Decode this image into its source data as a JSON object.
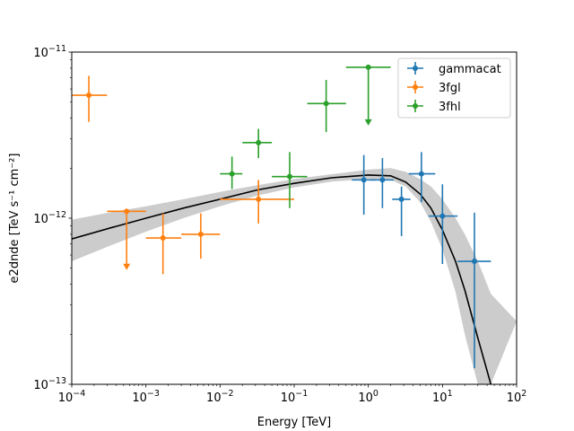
{
  "chart_data": {
    "type": "scatter",
    "title": "",
    "xlabel": "Energy [TeV]",
    "ylabel": "e2dnde [TeV s⁻¹ cm⁻²]",
    "xscale": "log",
    "yscale": "log",
    "xlim": [
      0.0001,
      100
    ],
    "ylim": [
      1e-13,
      1e-11
    ],
    "x_tick_labels": [
      {
        "base": "10",
        "exp": "−4"
      },
      {
        "base": "10",
        "exp": "−3"
      },
      {
        "base": "10",
        "exp": "−2"
      },
      {
        "base": "10",
        "exp": "−1"
      },
      {
        "base": "10",
        "exp": "0"
      },
      {
        "base": "10",
        "exp": "1"
      },
      {
        "base": "10",
        "exp": "2"
      }
    ],
    "y_tick_labels": [
      {
        "base": "10",
        "exp": "−13"
      },
      {
        "base": "10",
        "exp": "−12"
      },
      {
        "base": "10",
        "exp": "−11"
      }
    ],
    "grid": false,
    "legend": {
      "placement": "top-right",
      "entries": [
        "gammacat",
        "3fgl",
        "3fhl"
      ]
    },
    "model": {
      "color": "#000000",
      "band_color": "#cccccc",
      "x": [
        0.0001,
        0.00032,
        0.001,
        0.0032,
        0.01,
        0.032,
        0.1,
        0.32,
        1.0,
        2.0,
        3.2,
        5.0,
        7.0,
        10.0,
        15.0,
        20.0,
        30.0,
        45.0
      ],
      "y": [
        7.5e-13,
        8.7e-13,
        1e-12,
        1.15e-12,
        1.3e-12,
        1.48e-12,
        1.62e-12,
        1.75e-12,
        1.82e-12,
        1.8e-12,
        1.65e-12,
        1.4e-12,
        1.15e-12,
        8.5e-13,
        5.5e-13,
        3.7e-13,
        1.9e-13,
        1e-13
      ],
      "band_lower": [
        5.5e-13,
        6.8e-13,
        8.3e-13,
        1e-12,
        1.18e-12,
        1.37e-12,
        1.53e-12,
        1.66e-12,
        1.72e-12,
        1.7e-12,
        1.55e-12,
        1.25e-12,
        9.5e-13,
        6.5e-13,
        3.6e-13,
        2e-13,
        1e-13,
        1e-13
      ],
      "band_upper": [
        9.8e-13,
        1.08e-12,
        1.18e-12,
        1.3e-12,
        1.44e-12,
        1.58e-12,
        1.72e-12,
        1.84e-12,
        1.96e-12,
        2e-12,
        1.9e-12,
        1.72e-12,
        1.55e-12,
        1.3e-12,
        1e-12,
        8e-13,
        5.5e-13,
        3.5e-13
      ],
      "band_x_max_upper": 100,
      "band_upper_end": 2.4e-13
    },
    "series": [
      {
        "name": "gammacat",
        "color": "#1f77b4",
        "points": [
          {
            "x": 0.87,
            "y": 1.7e-12,
            "xlo": 0.6,
            "xhi": 1.25,
            "ylo": 1.05e-12,
            "yhi": 2.4e-12
          },
          {
            "x": 1.55,
            "y": 1.7e-12,
            "xlo": 1.05,
            "xhi": 2.2,
            "ylo": 1.15e-12,
            "yhi": 2.3e-12
          },
          {
            "x": 2.8,
            "y": 1.3e-12,
            "xlo": 2.1,
            "xhi": 3.7,
            "ylo": 7.8e-13,
            "yhi": 1.55e-12
          },
          {
            "x": 5.2,
            "y": 1.85e-12,
            "xlo": 3.5,
            "xhi": 8.0,
            "ylo": 1.25e-12,
            "yhi": 2.5e-12
          },
          {
            "x": 10.0,
            "y": 1.03e-12,
            "xlo": 6.5,
            "xhi": 16.0,
            "ylo": 5.3e-13,
            "yhi": 1.6e-12
          },
          {
            "x": 27.0,
            "y": 5.5e-13,
            "xlo": 16.0,
            "xhi": 45.0,
            "ylo": 1.25e-13,
            "yhi": 1.08e-12
          }
        ]
      },
      {
        "name": "3fgl",
        "color": "#ff7f0e",
        "points": [
          {
            "x": 0.00017,
            "y": 5.5e-12,
            "xlo": 0.0001,
            "xhi": 0.0003,
            "ylo": 3.8e-12,
            "yhi": 7.2e-12
          },
          {
            "x": 0.00055,
            "y": 1.1e-12,
            "xlo": 0.0003,
            "xhi": 0.001,
            "ul": true,
            "arrow_to": 5e-13
          },
          {
            "x": 0.0017,
            "y": 7.6e-13,
            "xlo": 0.001,
            "xhi": 0.003,
            "ylo": 4.6e-13,
            "yhi": 1.07e-12
          },
          {
            "x": 0.0055,
            "y": 8e-13,
            "xlo": 0.003,
            "xhi": 0.01,
            "ylo": 5.7e-13,
            "yhi": 1.07e-12
          },
          {
            "x": 0.033,
            "y": 1.3e-12,
            "xlo": 0.01,
            "xhi": 0.1,
            "ylo": 9.3e-13,
            "yhi": 1.7e-12
          }
        ]
      },
      {
        "name": "3fhl",
        "color": "#2ca02c",
        "points": [
          {
            "x": 0.0145,
            "y": 1.85e-12,
            "xlo": 0.01,
            "xhi": 0.02,
            "ylo": 1.5e-12,
            "yhi": 2.35e-12
          },
          {
            "x": 0.033,
            "y": 2.85e-12,
            "xlo": 0.02,
            "xhi": 0.05,
            "ylo": 2.3e-12,
            "yhi": 3.45e-12
          },
          {
            "x": 0.087,
            "y": 1.78e-12,
            "xlo": 0.05,
            "xhi": 0.15,
            "ylo": 1.15e-12,
            "yhi": 2.5e-12
          },
          {
            "x": 0.27,
            "y": 4.9e-12,
            "xlo": 0.15,
            "xhi": 0.5,
            "ylo": 3.3e-12,
            "yhi": 6.8e-12
          },
          {
            "x": 1.0,
            "y": 8.1e-12,
            "xlo": 0.5,
            "xhi": 2.0,
            "ul": true,
            "arrow_to": 3.7e-12
          }
        ]
      }
    ]
  }
}
